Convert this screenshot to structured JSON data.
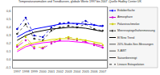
{
  "chart_data": {
    "type": "line",
    "title": "Temperaturanomalien und Trendkurven, globale Werte 1997 bis 2007 ,Quelle Hadley Center UK",
    "x": [
      1997,
      1998,
      1999,
      2000,
      2001,
      2002,
      2003,
      2004,
      2005,
      2006,
      2007
    ],
    "xlim": [
      1996.5,
      2007.5
    ],
    "xticks": [
      1997,
      1998,
      1999,
      2000,
      2001,
      2002,
      2003,
      2004,
      2005,
      2006,
      2007
    ],
    "ylim": [
      -0.1,
      0.65
    ],
    "yticks": [
      {
        "value": -0.1,
        "label": "-0,1"
      },
      {
        "value": 0.0,
        "label": "0,0"
      },
      {
        "value": 0.1,
        "label": "0,1"
      },
      {
        "value": 0.2,
        "label": "0,2"
      },
      {
        "value": 0.3,
        "label": "0,3"
      },
      {
        "value": 0.4,
        "label": "0,4"
      },
      {
        "value": 0.5,
        "label": "0,5"
      },
      {
        "value": 0.6,
        "label": "0,6"
      }
    ],
    "grid": false,
    "legend": "right",
    "series": [
      {
        "color": "#0000cc",
        "line_style": "dotted",
        "marker": "dot",
        "values": [
          0.38,
          0.52,
          0.3,
          0.28,
          0.4,
          0.45,
          0.46,
          0.44,
          0.48,
          0.43,
          0.42
        ]
      },
      {
        "color": "#333333",
        "line_style": "dotted",
        "marker": "dot",
        "values": [
          0.32,
          0.44,
          0.26,
          0.24,
          0.36,
          0.4,
          0.42,
          0.4,
          0.44,
          0.38,
          0.36
        ]
      },
      {
        "color": "#cccc00",
        "line_style": "dashed",
        "marker": "dot",
        "values": [
          0.18,
          0.28,
          0.16,
          0.15,
          0.22,
          0.26,
          0.28,
          0.26,
          0.24,
          0.2,
          0.18
        ]
      },
      {
        "color": "#cc00cc",
        "line_style": "dashed",
        "marker": "dot",
        "values": [
          0.16,
          0.24,
          0.14,
          0.14,
          0.2,
          0.24,
          0.26,
          0.24,
          0.22,
          0.18,
          0.15
        ]
      },
      {
        "color": "#0000ff",
        "line_style": "solid",
        "values": [
          0.28,
          0.34,
          0.38,
          0.4,
          0.42,
          0.44,
          0.45,
          0.45,
          0.44,
          0.43,
          0.41
        ]
      },
      {
        "color": "#000000",
        "line_style": "solid",
        "values": [
          0.24,
          0.3,
          0.34,
          0.36,
          0.38,
          0.39,
          0.4,
          0.4,
          0.39,
          0.37,
          0.35
        ]
      },
      {
        "color": "#dddd00",
        "line_style": "solid",
        "values": [
          0.12,
          0.18,
          0.21,
          0.23,
          0.25,
          0.26,
          0.26,
          0.25,
          0.24,
          0.22,
          0.2
        ]
      },
      {
        "color": "#ff00ff",
        "line_style": "solid",
        "values": [
          0.1,
          0.16,
          0.19,
          0.21,
          0.22,
          0.23,
          0.23,
          0.22,
          0.21,
          0.19,
          0.17
        ]
      },
      {
        "name": "Erdoberflache",
        "color": "#0000ff",
        "line_style": "dotted",
        "marker": "dot",
        "values": [
          null,
          null,
          null,
          null,
          null,
          null,
          null,
          null,
          null,
          null,
          null
        ]
      },
      {
        "name": "Atmosphare",
        "color": "#cc00cc",
        "line_style": "dashed",
        "marker": "dot",
        "values": [
          null,
          null,
          null,
          null,
          null,
          null,
          null,
          null,
          null,
          null,
          null
        ]
      },
      {
        "name": "Polareisschmelze",
        "color": "#cccc00",
        "line_style": "dashed",
        "marker": "dot",
        "values": [
          null,
          null,
          null,
          null,
          null,
          null,
          null,
          null,
          null,
          null,
          null
        ]
      },
      {
        "name": "Meeresspiegelhohenmessung",
        "color": "#333333",
        "line_style": "dotted",
        "marker": "dot",
        "values": [
          null,
          null,
          null,
          null,
          null,
          null,
          null,
          null,
          null,
          null,
          null
        ]
      },
      {
        "name": "El Nino Trend",
        "color": "#000000",
        "line_style": "solid",
        "values": [
          null,
          null,
          null,
          null,
          null,
          null,
          null,
          null,
          null,
          null,
          null
        ]
      },
      {
        "name": "20%-Studie-See-Messungen",
        "color": "#555555",
        "line_style": "solid",
        "values": [
          null,
          null,
          null,
          null,
          null,
          null,
          null,
          null,
          null,
          null,
          null
        ]
      },
      {
        "name": "X-AWT",
        "color": "#555555",
        "line_style": "solid",
        "values": [
          null,
          null,
          null,
          null,
          null,
          null,
          null,
          null,
          null,
          null,
          null
        ]
      },
      {
        "name": "Saisonbereinigt",
        "color": "#333333",
        "line_style": "dashed",
        "values": [
          null,
          null,
          null,
          null,
          null,
          null,
          null,
          null,
          null,
          null,
          null
        ]
      },
      {
        "name": "Lineare Extrapolation",
        "color": "#333333",
        "line_style": "dotted",
        "values": [
          null,
          null,
          null,
          null,
          null,
          null,
          null,
          null,
          null,
          null,
          null
        ]
      }
    ]
  }
}
